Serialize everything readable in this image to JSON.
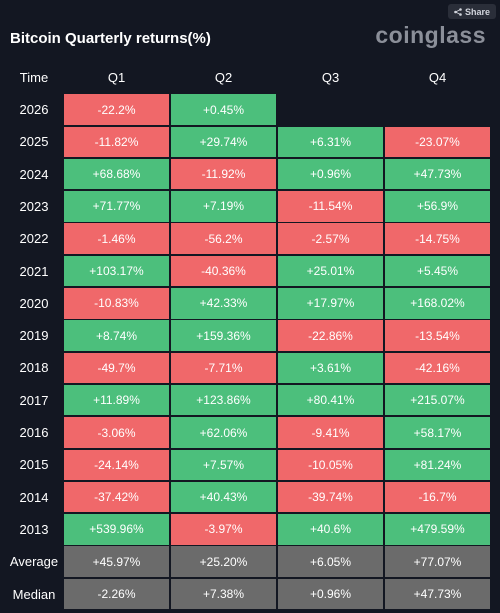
{
  "header": {
    "title": "Bitcoin Quarterly returns(%)",
    "logo": "coinglass",
    "share_label": "Share"
  },
  "colors": {
    "background": "#131722",
    "positive": "#4cbf7c",
    "negative": "#f0686a",
    "summary": "#6b6b6b"
  },
  "chart_data": {
    "type": "table",
    "title": "Bitcoin Quarterly returns(%)",
    "columns": [
      "Time",
      "Q1",
      "Q2",
      "Q3",
      "Q4"
    ],
    "rows": [
      {
        "label": "2026",
        "values": [
          "-22.2%",
          "+0.45%",
          "",
          ""
        ]
      },
      {
        "label": "2025",
        "values": [
          "-11.82%",
          "+29.74%",
          "+6.31%",
          "-23.07%"
        ]
      },
      {
        "label": "2024",
        "values": [
          "+68.68%",
          "-11.92%",
          "+0.96%",
          "+47.73%"
        ]
      },
      {
        "label": "2023",
        "values": [
          "+71.77%",
          "+7.19%",
          "-11.54%",
          "+56.9%"
        ]
      },
      {
        "label": "2022",
        "values": [
          "-1.46%",
          "-56.2%",
          "-2.57%",
          "-14.75%"
        ]
      },
      {
        "label": "2021",
        "values": [
          "+103.17%",
          "-40.36%",
          "+25.01%",
          "+5.45%"
        ]
      },
      {
        "label": "2020",
        "values": [
          "-10.83%",
          "+42.33%",
          "+17.97%",
          "+168.02%"
        ]
      },
      {
        "label": "2019",
        "values": [
          "+8.74%",
          "+159.36%",
          "-22.86%",
          "-13.54%"
        ]
      },
      {
        "label": "2018",
        "values": [
          "-49.7%",
          "-7.71%",
          "+3.61%",
          "-42.16%"
        ]
      },
      {
        "label": "2017",
        "values": [
          "+11.89%",
          "+123.86%",
          "+80.41%",
          "+215.07%"
        ]
      },
      {
        "label": "2016",
        "values": [
          "-3.06%",
          "+62.06%",
          "-9.41%",
          "+58.17%"
        ]
      },
      {
        "label": "2015",
        "values": [
          "-24.14%",
          "+7.57%",
          "-10.05%",
          "+81.24%"
        ]
      },
      {
        "label": "2014",
        "values": [
          "-37.42%",
          "+40.43%",
          "-39.74%",
          "-16.7%"
        ]
      },
      {
        "label": "2013",
        "values": [
          "+539.96%",
          "-3.97%",
          "+40.6%",
          "+479.59%"
        ]
      }
    ],
    "summary": [
      {
        "label": "Average",
        "values": [
          "+45.97%",
          "+25.20%",
          "+6.05%",
          "+77.07%"
        ]
      },
      {
        "label": "Median",
        "values": [
          "-2.26%",
          "+7.38%",
          "+0.96%",
          "+47.73%"
        ]
      }
    ]
  }
}
